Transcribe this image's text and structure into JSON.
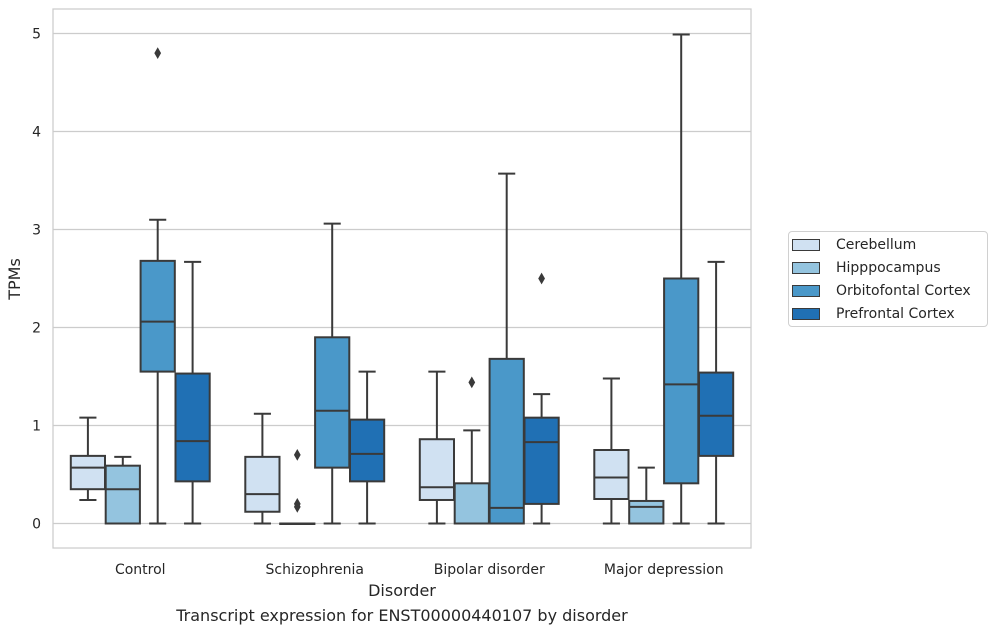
{
  "chart_data": {
    "type": "boxplot",
    "title": "Transcript expression for ENST00000440107 by disorder",
    "xlabel": "Disorder",
    "ylabel": "TPMs",
    "ylim": [
      -0.25,
      5.25
    ],
    "yticks": [
      0,
      1,
      2,
      3,
      4,
      5
    ],
    "grid": "horizontal",
    "legend_position": "right",
    "categories": [
      "Control",
      "Schizophrenia",
      "Bipolar disorder",
      "Major depression"
    ],
    "series": [
      {
        "name": "Cerebellum",
        "color": "#d0e1f2",
        "boxes": [
          {
            "whislo": 0.24,
            "q1": 0.35,
            "med": 0.57,
            "q3": 0.69,
            "whishi": 1.08,
            "fliers": []
          },
          {
            "whislo": 0.0,
            "q1": 0.12,
            "med": 0.3,
            "q3": 0.68,
            "whishi": 1.12,
            "fliers": []
          },
          {
            "whislo": 0.0,
            "q1": 0.24,
            "med": 0.37,
            "q3": 0.86,
            "whishi": 1.55,
            "fliers": []
          },
          {
            "whislo": 0.0,
            "q1": 0.25,
            "med": 0.47,
            "q3": 0.75,
            "whishi": 1.48,
            "fliers": []
          }
        ]
      },
      {
        "name": "Hipppocampus",
        "color": "#94c4df",
        "boxes": [
          {
            "whislo": 0.0,
            "q1": 0.0,
            "med": 0.35,
            "q3": 0.59,
            "whishi": 0.68,
            "fliers": []
          },
          {
            "whislo": 0.0,
            "q1": 0.0,
            "med": 0.0,
            "q3": 0.0,
            "whishi": 0.0,
            "fliers": [
              0.7,
              0.2,
              0.17
            ]
          },
          {
            "whislo": 0.0,
            "q1": 0.0,
            "med": 0.0,
            "q3": 0.41,
            "whishi": 0.95,
            "fliers": [
              1.44
            ]
          },
          {
            "whislo": 0.0,
            "q1": 0.0,
            "med": 0.17,
            "q3": 0.23,
            "whishi": 0.57,
            "fliers": []
          }
        ]
      },
      {
        "name": "Orbitofontal Cortex",
        "color": "#4a98c9",
        "boxes": [
          {
            "whislo": 0.0,
            "q1": 1.55,
            "med": 2.06,
            "q3": 2.68,
            "whishi": 3.1,
            "fliers": [
              4.8
            ]
          },
          {
            "whislo": 0.0,
            "q1": 0.57,
            "med": 1.15,
            "q3": 1.9,
            "whishi": 3.06,
            "fliers": []
          },
          {
            "whislo": 0.0,
            "q1": 0.0,
            "med": 0.16,
            "q3": 1.68,
            "whishi": 3.57,
            "fliers": []
          },
          {
            "whislo": 0.0,
            "q1": 0.41,
            "med": 1.42,
            "q3": 2.5,
            "whishi": 4.99,
            "fliers": []
          }
        ]
      },
      {
        "name": "Prefrontal Cortex",
        "color": "#2070b4",
        "boxes": [
          {
            "whislo": 0.0,
            "q1": 0.43,
            "med": 0.84,
            "q3": 1.53,
            "whishi": 2.67,
            "fliers": []
          },
          {
            "whislo": 0.0,
            "q1": 0.43,
            "med": 0.71,
            "q3": 1.06,
            "whishi": 1.55,
            "fliers": []
          },
          {
            "whislo": 0.0,
            "q1": 0.2,
            "med": 0.83,
            "q3": 1.08,
            "whishi": 1.32,
            "fliers": [
              2.5
            ]
          },
          {
            "whislo": 0.0,
            "q1": 0.69,
            "med": 1.1,
            "q3": 1.54,
            "whishi": 2.67,
            "fliers": []
          }
        ]
      }
    ]
  },
  "styles": {
    "frame_color": "#cccccc",
    "grid_color": "#cccccc",
    "line_color": "#3a3a3a",
    "text_color": "#262626"
  }
}
